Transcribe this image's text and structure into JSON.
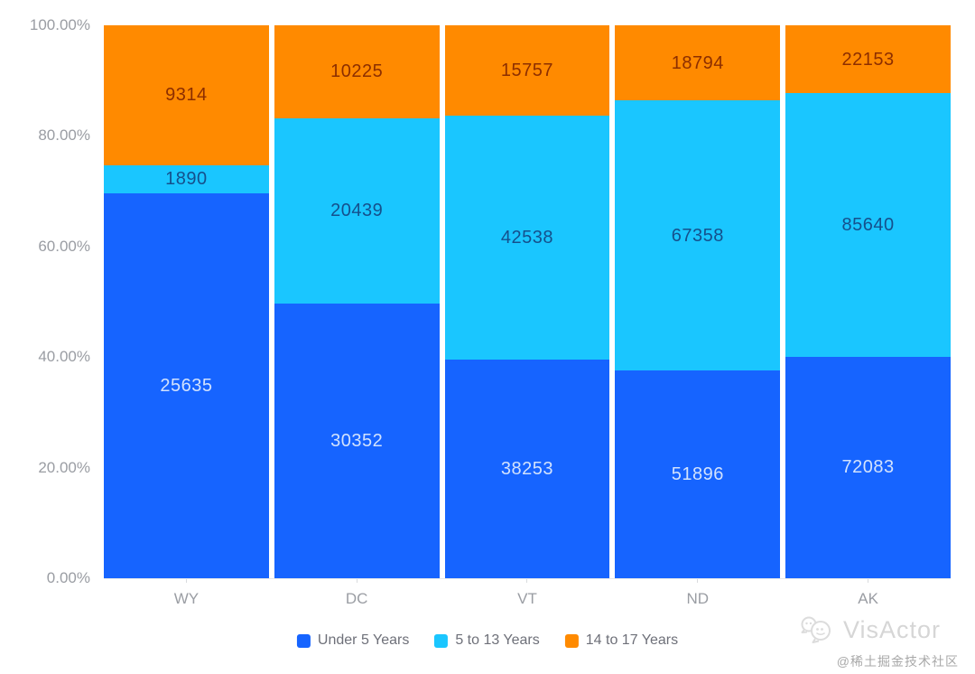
{
  "chart_data": {
    "type": "bar",
    "variant": "percent-stacked-vertical",
    "title": "",
    "categories": [
      "WY",
      "DC",
      "VT",
      "ND",
      "AK"
    ],
    "series": [
      {
        "name": "Under 5 Years",
        "color": "#1664FF",
        "label_color": "#d2e2fd",
        "values": [
          25635,
          30352,
          38253,
          51896,
          72083
        ]
      },
      {
        "name": "5 to 13 Years",
        "color": "#1AC6FF",
        "label_color": "#15508c",
        "values": [
          1890,
          20439,
          42538,
          67358,
          85640
        ]
      },
      {
        "name": "14 to 17 Years",
        "color": "#FF8A00",
        "label_color": "#8c2e00",
        "values": [
          9314,
          10225,
          15757,
          18794,
          22153
        ]
      }
    ],
    "stack_order_bottom_to_top": [
      "Under 5 Years",
      "5 to 13 Years",
      "14 to 17 Years"
    ],
    "y_axis": {
      "tick_labels_bottom_to_top": [
        "0.00%",
        "20.00%",
        "40.00%",
        "60.00%",
        "80.00%",
        "100.00%"
      ],
      "range": [
        0,
        100
      ],
      "unit": "%"
    },
    "x_axis": {
      "tick_labels": [
        "WY",
        "DC",
        "VT",
        "ND",
        "AK"
      ]
    },
    "grid": false,
    "legend_position": "bottom",
    "data_labels": "value-centered-in-segment"
  },
  "watermark": {
    "brand": "VisActor",
    "credit": "@稀土掘金技术社区",
    "brand_color": "#d6d6d6"
  }
}
